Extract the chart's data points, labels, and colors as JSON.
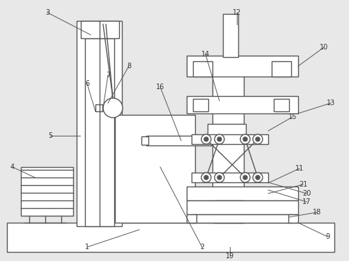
{
  "bg_color": "#e8e8e8",
  "line_color": "#555555",
  "lw": 1.0,
  "label_fs": 7.0,
  "label_color": "#333333"
}
